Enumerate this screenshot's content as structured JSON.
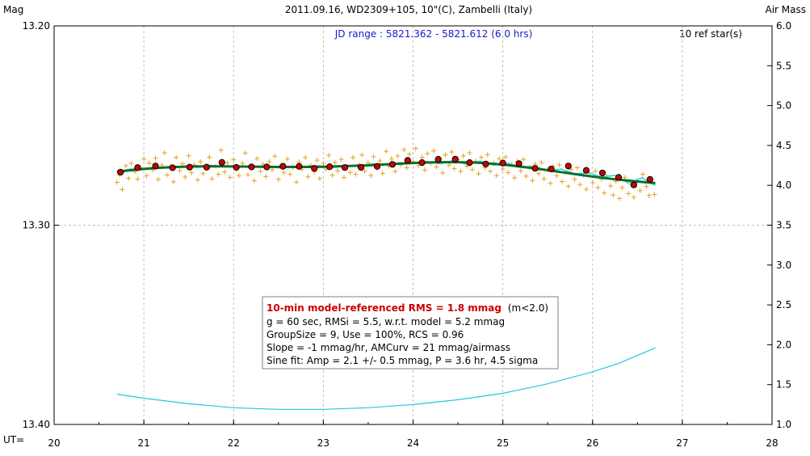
{
  "chart_data": {
    "type": "scatter",
    "title": "2011.09.16, WD2309+105, 10\"(C), Zambelli (Italy)",
    "ylabel_left": "Mag",
    "ylabel_right": "Air Mass",
    "xlabel_prefix": "UT=",
    "jd_range": "JD range : 5821.362 - 5821.612 (6.0 hrs)",
    "ref_stars": "10 ref star(s)",
    "xlim": [
      20,
      28
    ],
    "ylim_mag": [
      13.4,
      13.2
    ],
    "ylim_airmass": [
      1.0,
      6.0
    ],
    "x_ticks": [
      "20",
      "21",
      "22",
      "23",
      "24",
      "25",
      "26",
      "27",
      "28"
    ],
    "y_left_ticks": [
      "13.20",
      "13.30",
      "13.40"
    ],
    "y_right_ticks": [
      "6.0",
      "5.5",
      "5.0",
      "4.5",
      "4.0",
      "3.5",
      "3.0",
      "2.5",
      "2.0",
      "1.5",
      "1.0"
    ],
    "grid": true,
    "colors": {
      "raw": "#e8a020",
      "binned_fill": "#cc0000",
      "model": "#0d6e2a",
      "smooth": "#22d6e8",
      "airmass": "#22c8e0",
      "grid": "#c0c0c0"
    },
    "raw_points": [
      [
        20.7,
        13.2785
      ],
      [
        20.73,
        13.2748
      ],
      [
        20.76,
        13.2821
      ],
      [
        20.8,
        13.2702
      ],
      [
        20.83,
        13.2765
      ],
      [
        20.86,
        13.269
      ],
      [
        20.9,
        13.2731
      ],
      [
        20.93,
        13.2769
      ],
      [
        20.96,
        13.2711
      ],
      [
        21.0,
        13.2668
      ],
      [
        21.03,
        13.2752
      ],
      [
        21.06,
        13.2689
      ],
      [
        21.1,
        13.2722
      ],
      [
        21.13,
        13.2664
      ],
      [
        21.16,
        13.2771
      ],
      [
        21.2,
        13.2699
      ],
      [
        21.23,
        13.2637
      ],
      [
        21.26,
        13.2748
      ],
      [
        21.3,
        13.2705
      ],
      [
        21.33,
        13.2782
      ],
      [
        21.36,
        13.266
      ],
      [
        21.4,
        13.2726
      ],
      [
        21.43,
        13.2691
      ],
      [
        21.46,
        13.2758
      ],
      [
        21.5,
        13.2652
      ],
      [
        21.53,
        13.2737
      ],
      [
        21.56,
        13.2698
      ],
      [
        21.6,
        13.2773
      ],
      [
        21.63,
        13.2682
      ],
      [
        21.66,
        13.2741
      ],
      [
        21.7,
        13.2715
      ],
      [
        21.73,
        13.2659
      ],
      [
        21.76,
        13.2768
      ],
      [
        21.8,
        13.2704
      ],
      [
        21.83,
        13.2745
      ],
      [
        21.86,
        13.2624
      ],
      [
        21.9,
        13.2733
      ],
      [
        21.93,
        13.2688
      ],
      [
        21.96,
        13.276
      ],
      [
        22.0,
        13.2672
      ],
      [
        22.03,
        13.2719
      ],
      [
        22.06,
        13.2751
      ],
      [
        22.1,
        13.269
      ],
      [
        22.13,
        13.2638
      ],
      [
        22.16,
        13.2747
      ],
      [
        22.2,
        13.2703
      ],
      [
        22.23,
        13.2777
      ],
      [
        22.26,
        13.2666
      ],
      [
        22.3,
        13.2729
      ],
      [
        22.33,
        13.2694
      ],
      [
        22.36,
        13.2756
      ],
      [
        22.4,
        13.2681
      ],
      [
        22.43,
        13.2722
      ],
      [
        22.46,
        13.2654
      ],
      [
        22.5,
        13.277
      ],
      [
        22.53,
        13.2698
      ],
      [
        22.56,
        13.2737
      ],
      [
        22.6,
        13.2668
      ],
      [
        22.63,
        13.2745
      ],
      [
        22.66,
        13.2711
      ],
      [
        22.7,
        13.2784
      ],
      [
        22.73,
        13.2683
      ],
      [
        22.76,
        13.272
      ],
      [
        22.8,
        13.2661
      ],
      [
        22.83,
        13.2757
      ],
      [
        22.86,
        13.27
      ],
      [
        22.9,
        13.2732
      ],
      [
        22.93,
        13.2674
      ],
      [
        22.96,
        13.2766
      ],
      [
        23.0,
        13.269
      ],
      [
        23.03,
        13.2719
      ],
      [
        23.06,
        13.2649
      ],
      [
        23.1,
        13.275
      ],
      [
        23.13,
        13.2686
      ],
      [
        23.16,
        13.2727
      ],
      [
        23.2,
        13.267
      ],
      [
        23.23,
        13.2761
      ],
      [
        23.26,
        13.2705
      ],
      [
        23.3,
        13.2736
      ],
      [
        23.33,
        13.266
      ],
      [
        23.36,
        13.2745
      ],
      [
        23.4,
        13.2695
      ],
      [
        23.43,
        13.2648
      ],
      [
        23.46,
        13.2728
      ],
      [
        23.5,
        13.2688
      ],
      [
        23.53,
        13.2751
      ],
      [
        23.56,
        13.2656
      ],
      [
        23.6,
        13.2716
      ],
      [
        23.63,
        13.2678
      ],
      [
        23.66,
        13.274
      ],
      [
        23.7,
        13.263
      ],
      [
        23.73,
        13.2705
      ],
      [
        23.76,
        13.2667
      ],
      [
        23.8,
        13.273
      ],
      [
        23.83,
        13.2653
      ],
      [
        23.86,
        13.2698
      ],
      [
        23.9,
        13.2621
      ],
      [
        23.93,
        13.2712
      ],
      [
        23.96,
        13.2644
      ],
      [
        24.0,
        13.2682
      ],
      [
        24.03,
        13.2615
      ],
      [
        24.06,
        13.2701
      ],
      [
        24.1,
        13.2659
      ],
      [
        24.13,
        13.2723
      ],
      [
        24.16,
        13.2641
      ],
      [
        24.2,
        13.269
      ],
      [
        24.23,
        13.2628
      ],
      [
        24.26,
        13.2708
      ],
      [
        24.3,
        13.2665
      ],
      [
        24.33,
        13.2738
      ],
      [
        24.36,
        13.2647
      ],
      [
        24.4,
        13.2699
      ],
      [
        24.43,
        13.2633
      ],
      [
        24.46,
        13.2716
      ],
      [
        24.5,
        13.2672
      ],
      [
        24.53,
        13.273
      ],
      [
        24.56,
        13.2652
      ],
      [
        24.6,
        13.2704
      ],
      [
        24.63,
        13.2637
      ],
      [
        24.66,
        13.2721
      ],
      [
        24.7,
        13.2679
      ],
      [
        24.73,
        13.2742
      ],
      [
        24.76,
        13.266
      ],
      [
        24.8,
        13.2712
      ],
      [
        24.83,
        13.2646
      ],
      [
        24.86,
        13.2729
      ],
      [
        24.9,
        13.2688
      ],
      [
        24.93,
        13.2751
      ],
      [
        24.96,
        13.2667
      ],
      [
        25.0,
        13.2718
      ],
      [
        25.03,
        13.2658
      ],
      [
        25.06,
        13.2736
      ],
      [
        25.1,
        13.2695
      ],
      [
        25.13,
        13.2762
      ],
      [
        25.16,
        13.268
      ],
      [
        25.2,
        13.2727
      ],
      [
        25.23,
        13.267
      ],
      [
        25.26,
        13.2754
      ],
      [
        25.3,
        13.2709
      ],
      [
        25.33,
        13.2776
      ],
      [
        25.36,
        13.2693
      ],
      [
        25.4,
        13.2741
      ],
      [
        25.43,
        13.2686
      ],
      [
        25.46,
        13.2768
      ],
      [
        25.5,
        13.2722
      ],
      [
        25.53,
        13.279
      ],
      [
        25.56,
        13.2704
      ],
      [
        25.6,
        13.2752
      ],
      [
        25.63,
        13.2698
      ],
      [
        25.66,
        13.2781
      ],
      [
        25.7,
        13.2734
      ],
      [
        25.73,
        13.2805
      ],
      [
        25.76,
        13.272
      ],
      [
        25.8,
        13.277
      ],
      [
        25.83,
        13.2712
      ],
      [
        25.86,
        13.2796
      ],
      [
        25.9,
        13.2748
      ],
      [
        25.93,
        13.282
      ],
      [
        25.96,
        13.2738
      ],
      [
        26.0,
        13.2787
      ],
      [
        26.03,
        13.2729
      ],
      [
        26.06,
        13.2812
      ],
      [
        26.1,
        13.277
      ],
      [
        26.13,
        13.2838
      ],
      [
        26.16,
        13.2755
      ],
      [
        26.2,
        13.2803
      ],
      [
        26.23,
        13.2849
      ],
      [
        26.26,
        13.278
      ],
      [
        26.3,
        13.2866
      ],
      [
        26.33,
        13.2812
      ],
      [
        26.36,
        13.276
      ],
      [
        26.4,
        13.2842
      ],
      [
        26.43,
        13.2796
      ],
      [
        26.46,
        13.286
      ],
      [
        26.5,
        13.2778
      ],
      [
        26.53,
        13.2827
      ],
      [
        26.56,
        13.2745
      ],
      [
        26.6,
        13.2806
      ],
      [
        26.63,
        13.2851
      ],
      [
        26.66,
        13.2784
      ],
      [
        26.69,
        13.2846
      ]
    ],
    "binned_points": [
      [
        20.74,
        13.2734
      ],
      [
        20.93,
        13.2711
      ],
      [
        21.13,
        13.2703
      ],
      [
        21.32,
        13.2712
      ],
      [
        21.51,
        13.2709
      ],
      [
        21.7,
        13.2709
      ],
      [
        21.87,
        13.2685
      ],
      [
        22.03,
        13.271
      ],
      [
        22.2,
        13.2708
      ],
      [
        22.37,
        13.2708
      ],
      [
        22.55,
        13.2705
      ],
      [
        22.73,
        13.2705
      ],
      [
        22.9,
        13.2715
      ],
      [
        23.07,
        13.2707
      ],
      [
        23.24,
        13.2711
      ],
      [
        23.42,
        13.271
      ],
      [
        23.6,
        13.2705
      ],
      [
        23.77,
        13.2695
      ],
      [
        23.94,
        13.2675
      ],
      [
        24.1,
        13.2686
      ],
      [
        24.28,
        13.267
      ],
      [
        24.47,
        13.2669
      ],
      [
        24.63,
        13.2686
      ],
      [
        24.81,
        13.2693
      ],
      [
        25.0,
        13.2688
      ],
      [
        25.18,
        13.2691
      ],
      [
        25.36,
        13.2715
      ],
      [
        25.54,
        13.2718
      ],
      [
        25.73,
        13.2703
      ],
      [
        25.93,
        13.2725
      ],
      [
        26.11,
        13.2738
      ],
      [
        26.29,
        13.276
      ],
      [
        26.46,
        13.2798
      ],
      [
        26.64,
        13.277
      ]
    ],
    "model_points": [
      [
        20.7,
        13.2732
      ],
      [
        20.9,
        13.2722
      ],
      [
        21.1,
        13.2714
      ],
      [
        21.3,
        13.2709
      ],
      [
        21.5,
        13.2706
      ],
      [
        21.7,
        13.2705
      ],
      [
        21.9,
        13.2705
      ],
      [
        22.1,
        13.2706
      ],
      [
        22.3,
        13.2707
      ],
      [
        22.5,
        13.2708
      ],
      [
        22.7,
        13.2708
      ],
      [
        22.9,
        13.2708
      ],
      [
        23.1,
        13.2706
      ],
      [
        23.3,
        13.2703
      ],
      [
        23.5,
        13.27
      ],
      [
        23.7,
        13.2695
      ],
      [
        23.9,
        13.269
      ],
      [
        24.1,
        13.2686
      ],
      [
        24.3,
        13.2684
      ],
      [
        24.5,
        13.2684
      ],
      [
        24.7,
        13.2686
      ],
      [
        24.9,
        13.2692
      ],
      [
        25.1,
        13.2701
      ],
      [
        25.3,
        13.2712
      ],
      [
        25.5,
        13.2724
      ],
      [
        25.7,
        13.2737
      ],
      [
        25.9,
        13.275
      ],
      [
        26.1,
        13.2762
      ],
      [
        26.3,
        13.2772
      ],
      [
        26.5,
        13.2781
      ],
      [
        26.7,
        13.2789
      ]
    ],
    "smooth_points": [
      [
        20.7,
        13.2732
      ],
      [
        20.85,
        13.2718
      ],
      [
        21.0,
        13.272
      ],
      [
        21.15,
        13.271
      ],
      [
        21.3,
        13.2713
      ],
      [
        21.45,
        13.2704
      ],
      [
        21.6,
        13.271
      ],
      [
        21.75,
        13.27
      ],
      [
        21.9,
        13.2708
      ],
      [
        22.05,
        13.2703
      ],
      [
        22.2,
        13.2712
      ],
      [
        22.35,
        13.2701
      ],
      [
        22.5,
        13.2713
      ],
      [
        22.65,
        13.2704
      ],
      [
        22.8,
        13.2711
      ],
      [
        22.95,
        13.2702
      ],
      [
        23.1,
        13.2711
      ],
      [
        23.25,
        13.27
      ],
      [
        23.4,
        13.2707
      ],
      [
        23.55,
        13.2692
      ],
      [
        23.7,
        13.2698
      ],
      [
        23.85,
        13.2686
      ],
      [
        24.0,
        13.269
      ],
      [
        24.15,
        13.268
      ],
      [
        24.3,
        13.2692
      ],
      [
        24.45,
        13.2675
      ],
      [
        24.6,
        13.2695
      ],
      [
        24.75,
        13.2678
      ],
      [
        24.9,
        13.2699
      ],
      [
        25.05,
        13.2688
      ],
      [
        25.2,
        13.271
      ],
      [
        25.35,
        13.2704
      ],
      [
        25.5,
        13.2727
      ],
      [
        25.65,
        13.2718
      ],
      [
        25.8,
        13.2742
      ],
      [
        25.95,
        13.2737
      ],
      [
        26.1,
        13.2758
      ],
      [
        26.25,
        13.275
      ],
      [
        26.4,
        13.279
      ],
      [
        26.55,
        13.2762
      ],
      [
        26.7,
        13.28
      ]
    ],
    "airmass_points": [
      [
        20.7,
        1.38
      ],
      [
        21.0,
        1.33
      ],
      [
        21.5,
        1.26
      ],
      [
        22.0,
        1.21
      ],
      [
        22.5,
        1.19
      ],
      [
        23.0,
        1.19
      ],
      [
        23.5,
        1.21
      ],
      [
        24.0,
        1.25
      ],
      [
        24.5,
        1.31
      ],
      [
        25.0,
        1.39
      ],
      [
        25.5,
        1.51
      ],
      [
        26.0,
        1.66
      ],
      [
        26.3,
        1.77
      ],
      [
        26.7,
        1.96
      ]
    ],
    "annotations": {
      "headline": "10-min model-referenced RMS = 1.8 mmag",
      "headline_suffix": "(m<2.0)",
      "lines": [
        "g = 60 sec, RMSi = 5.5, w.r.t. model = 5.2 mmag",
        "GroupSize = 9, Use = 100%, RCS = 0.96",
        "Slope = -1 mmag/hr, AMCurv = 21 mmag/airmass",
        "Sine fit: Amp = 2.1 +/- 0.5 mmag, P = 3.6 hr, 4.5 sigma"
      ]
    }
  }
}
